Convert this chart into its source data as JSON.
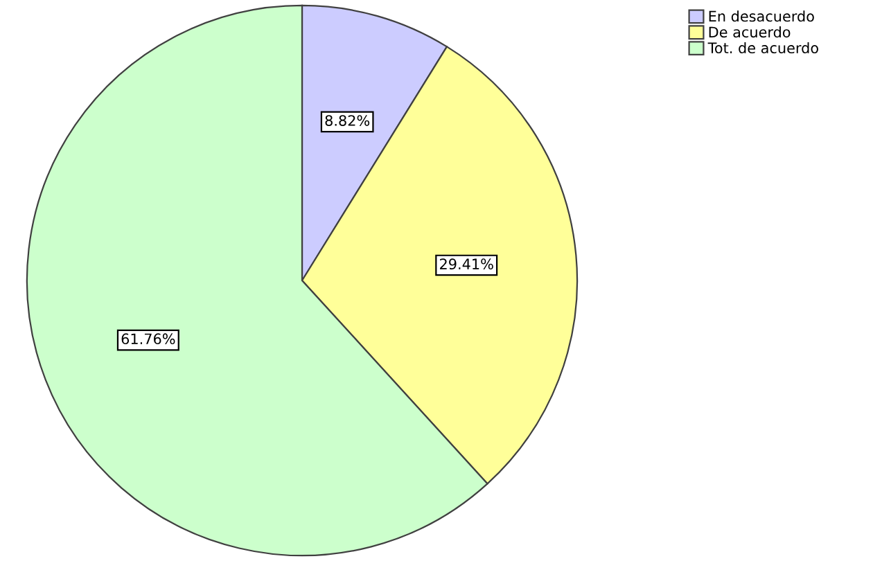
{
  "chart_data": {
    "type": "pie",
    "categories": [
      "En desacuerdo",
      "De acuerdo",
      "Tot. de acuerdo"
    ],
    "values": [
      8.82,
      29.41,
      61.76
    ],
    "value_labels": [
      "8.82%",
      "29.41%",
      "61.76%"
    ],
    "colors": [
      "#ccccff",
      "#ffff99",
      "#ccffcc"
    ],
    "legend": "top right"
  }
}
